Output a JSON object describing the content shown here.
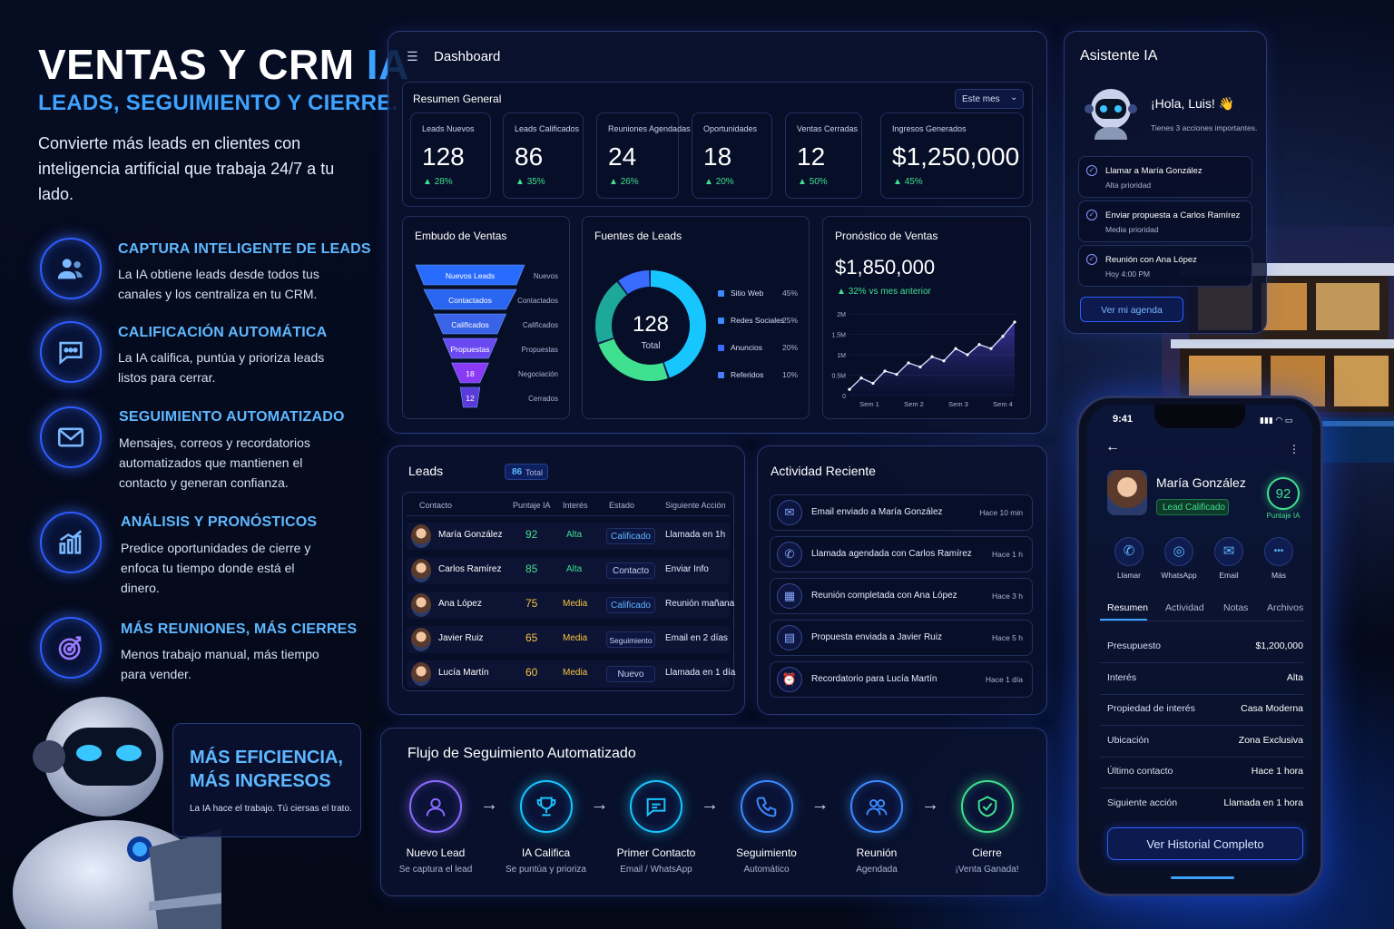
{
  "hero": {
    "title_main": "VENTAS Y CRM",
    "title_accent": "IA",
    "subtitle": "LEADS, SEGUIMIENTO Y CIERRE.",
    "description": "Convierte más leads en clientes con inteligencia artificial que trabaja 24/7 a tu lado."
  },
  "features": [
    {
      "title": "CAPTURA INTELIGENTE DE LEADS",
      "desc": "La IA obtiene leads desde todos tus canales y los centraliza en tu CRM.",
      "icon": "users-icon"
    },
    {
      "title": "CALIFICACIÓN AUTOMÁTICA",
      "desc": "La IA califica, puntúa y prioriza leads listos para cerrar.",
      "icon": "chat-icon"
    },
    {
      "title": "SEGUIMIENTO AUTOMATIZADO",
      "desc": "Mensajes, correos y recordatorios automatizados que mantienen el contacto y generan confianza.",
      "icon": "mail-icon"
    },
    {
      "title": "ANÁLISIS Y PRONÓSTICOS",
      "desc": "Predice oportunidades de cierre y enfoca tu tiempo donde está el dinero.",
      "icon": "chart-icon"
    },
    {
      "title": "MÁS REUNIONES, MÁS CIERRES",
      "desc": "Menos trabajo manual, más tiempo para vender.",
      "icon": "target-icon"
    }
  ],
  "efficiency": {
    "title_line1": "MÁS EFICIENCIA,",
    "title_line2": "MÁS INGRESOS",
    "desc": "La IA hace el trabajo. Tú ciersas el trato."
  },
  "dashboard": {
    "title": "Dashboard",
    "summary_title": "Resumen General",
    "period": "Este mes",
    "kpis": [
      {
        "label": "Leads Nuevos",
        "value": "128",
        "pct": "28%"
      },
      {
        "label": "Leads Calificados",
        "value": "86",
        "pct": "35%"
      },
      {
        "label": "Reuniones Agendadas",
        "value": "24",
        "pct": "26%"
      },
      {
        "label": "Oportunidades",
        "value": "18",
        "pct": "20%"
      },
      {
        "label": "Ventas Cerradas",
        "value": "12",
        "pct": "50%"
      },
      {
        "label": "Ingresos Generados",
        "value": "$1,250,000",
        "pct": "45%"
      }
    ]
  },
  "funnel": {
    "title": "Embudo de Ventas",
    "stages": [
      {
        "inside": "Nuevos Leads",
        "side": "Nuevos",
        "value": 1
      },
      {
        "inside": "Contactados",
        "side": "Contactados",
        "value": 0.85
      },
      {
        "inside": "Calificados",
        "side": "Calificados",
        "value": 0.66
      },
      {
        "inside": "Propuestas",
        "side": "Propuestas",
        "value": 0.5
      },
      {
        "inside": "18",
        "side": "Negociación",
        "value": 0.34
      },
      {
        "inside": "12",
        "side": "Cerrados",
        "value": 0.18
      }
    ]
  },
  "sources": {
    "title": "Fuentes de Leads",
    "total": "128",
    "total_label": "Total",
    "items": [
      {
        "name": "Sitio Web",
        "pct": "45%",
        "value": 45,
        "color": "#18c6ff"
      },
      {
        "name": "Redes Sociales",
        "pct": "25%",
        "value": 25,
        "color": "#3fe08f"
      },
      {
        "name": "Anuncios",
        "pct": "20%",
        "value": 20,
        "color": "#1ea89a"
      },
      {
        "name": "Referidos",
        "pct": "10%",
        "value": 10,
        "color": "#3a6bff"
      }
    ]
  },
  "chart_data": {
    "type": "area",
    "title": "Pronóstico de Ventas",
    "headline": "$1,850,000",
    "change": "32% vs mes anterior",
    "y_ticks": [
      "2M",
      "1.5M",
      "1M",
      "0.5M",
      "0"
    ],
    "x_ticks": [
      "Sem 1",
      "Sem 2",
      "Sem 3",
      "Sem 4"
    ],
    "ylim": [
      0,
      2000000
    ],
    "x": [
      0,
      0.3,
      0.6,
      0.9,
      1.2,
      1.5,
      1.8,
      2.1,
      2.4,
      2.7,
      3.0,
      3.3,
      3.6,
      3.9,
      4.2
    ],
    "values": [
      150000,
      430000,
      300000,
      600000,
      520000,
      800000,
      700000,
      950000,
      850000,
      1150000,
      1000000,
      1250000,
      1150000,
      1450000,
      1800000
    ]
  },
  "leads": {
    "title": "Leads",
    "badge_count": "86",
    "badge_label": "Total",
    "columns": [
      "Contacto",
      "Puntaje IA",
      "Interés",
      "Estado",
      "Siguiente Acción"
    ],
    "rows": [
      {
        "name": "María González",
        "score": "92",
        "interest": "Alta",
        "status": "Calificado",
        "next": "Llamada en 1h"
      },
      {
        "name": "Carlos Ramírez",
        "score": "85",
        "interest": "Alta",
        "status": "Contacto",
        "next": "Enviar Info"
      },
      {
        "name": "Ana López",
        "score": "75",
        "interest": "Media",
        "status": "Calificado",
        "next": "Reunión mañana"
      },
      {
        "name": "Javier Ruiz",
        "score": "65",
        "interest": "Media",
        "status": "Seguimiento",
        "next": "Email en 2 días"
      },
      {
        "name": "Lucía Martín",
        "score": "60",
        "interest": "Media",
        "status": "Nuevo",
        "next": "Llamada en 1 día"
      }
    ]
  },
  "activity": {
    "title": "Actividad Reciente",
    "items": [
      {
        "text": "Email enviado a María González",
        "time": "Hace 10 min",
        "icon": "mail-icon"
      },
      {
        "text": "Llamada agendada con Carlos Ramírez",
        "time": "Hace 1 h",
        "icon": "phone-icon"
      },
      {
        "text": "Reunión completada con Ana López",
        "time": "Hace 3 h",
        "icon": "calendar-icon"
      },
      {
        "text": "Propuesta enviada a Javier Ruiz",
        "time": "Hace 5 h",
        "icon": "document-icon"
      },
      {
        "text": "Recordatorio para Lucía Martín",
        "time": "Hace 1 día",
        "icon": "alarm-icon"
      }
    ]
  },
  "flow": {
    "title": "Flujo de Seguimiento Automatizado",
    "steps": [
      {
        "title": "Nuevo Lead",
        "sub": "Se captura el lead",
        "icon": "user-icon",
        "color": "#8a6bff"
      },
      {
        "title": "IA Califica",
        "sub": "Se puntúa y prioriza",
        "icon": "trophy-icon",
        "color": "#18c6ff"
      },
      {
        "title": "Primer Contacto",
        "sub": "Email / WhatsApp",
        "icon": "chat-icon",
        "color": "#18c6ff"
      },
      {
        "title": "Seguimiento",
        "sub": "Automático",
        "icon": "phone-icon",
        "color": "#3a8bff"
      },
      {
        "title": "Reunión",
        "sub": "Agendada",
        "icon": "group-icon",
        "color": "#3a8bff"
      },
      {
        "title": "Cierre",
        "sub": "¡Venta Ganada!",
        "icon": "check-shield-icon",
        "color": "#3fe08f"
      }
    ]
  },
  "assistant": {
    "title": "Asistente IA",
    "greeting": "¡Hola, Luis! 👋",
    "sub": "Tienes 3 acciones importantes.",
    "tasks": [
      {
        "title": "Llamar a María González",
        "sub": "Alta prioridad"
      },
      {
        "title": "Enviar propuesta a Carlos Ramírez",
        "sub": "Media prioridad"
      },
      {
        "title": "Reunión con Ana López",
        "sub": "Hoy 4:00 PM"
      }
    ],
    "button": "Ver mi agenda"
  },
  "phone": {
    "time": "9:41",
    "name": "María González",
    "badge": "Lead Calificado",
    "score": "92",
    "score_label": "Puntaje IA",
    "actions": [
      {
        "label": "Llamar",
        "icon": "phone-icon"
      },
      {
        "label": "WhatsApp",
        "icon": "whatsapp-icon"
      },
      {
        "label": "Email",
        "icon": "mail-icon"
      },
      {
        "label": "Más",
        "icon": "more-icon"
      }
    ],
    "tabs": [
      "Resumen",
      "Actividad",
      "Notas",
      "Archivos"
    ],
    "fields": [
      {
        "label": "Presupuesto",
        "value": "$1,200,000"
      },
      {
        "label": "Interés",
        "value": "Alta"
      },
      {
        "label": "Propiedad de interés",
        "value": "Casa Moderna"
      },
      {
        "label": "Ubicación",
        "value": "Zona Exclusiva"
      },
      {
        "label": "Último contacto",
        "value": "Hace 1 hora"
      },
      {
        "label": "Siguiente acción",
        "value": "Llamada en 1 hora"
      }
    ],
    "button": "Ver Historial Completo"
  }
}
